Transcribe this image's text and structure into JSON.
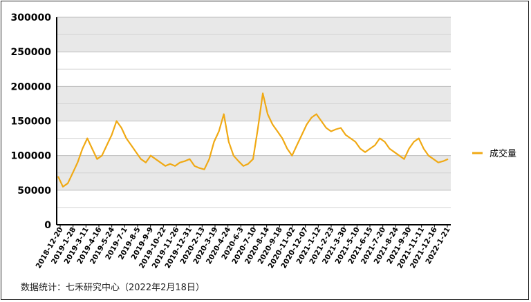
{
  "chart_data": {
    "type": "line",
    "title": "",
    "xlabel": "",
    "ylabel": "",
    "ylim": [
      0,
      300000
    ],
    "yticks": [
      0,
      50000,
      100000,
      150000,
      200000,
      250000,
      300000
    ],
    "grid": "horizontal bands",
    "legend_position": "right",
    "x_tick_labels": [
      "2018-12-20",
      "2019-1-28",
      "2019-3-11",
      "2019-4-16",
      "2019-5-24",
      "2019-7-1",
      "2019-8-5",
      "2019-9-9",
      "2019-10-22",
      "2019-11-26",
      "2019-12-31",
      "2020-2-13",
      "2020-3-19",
      "2020-4-24",
      "2020-6-3",
      "2020-7-10",
      "2020-8-14",
      "2020-9-18",
      "2020-11-02",
      "2020-12-07",
      "2021-1-12",
      "2021-2-23",
      "2021-3-30",
      "2021-5-10",
      "2021-6-15",
      "2021-7-20",
      "2021-8-24",
      "2021-9-30",
      "2021-11-11",
      "2021-12-16",
      "2022-1-21"
    ],
    "series": [
      {
        "name": "成交量",
        "color": "#F0A914",
        "values": [
          70000,
          55000,
          60000,
          75000,
          90000,
          110000,
          125000,
          110000,
          95000,
          100000,
          115000,
          130000,
          150000,
          140000,
          125000,
          115000,
          105000,
          95000,
          90000,
          100000,
          95000,
          90000,
          85000,
          88000,
          85000,
          90000,
          92000,
          95000,
          85000,
          82000,
          80000,
          95000,
          120000,
          135000,
          160000,
          120000,
          100000,
          92000,
          85000,
          88000,
          95000,
          140000,
          190000,
          160000,
          145000,
          135000,
          125000,
          110000,
          100000,
          115000,
          130000,
          145000,
          155000,
          160000,
          150000,
          140000,
          135000,
          138000,
          140000,
          130000,
          125000,
          120000,
          110000,
          105000,
          110000,
          115000,
          125000,
          120000,
          110000,
          105000,
          100000,
          95000,
          110000,
          120000,
          125000,
          110000,
          100000,
          95000,
          90000,
          92000,
          95000
        ]
      }
    ]
  },
  "source_note": "数据统计：七禾研究中心（2022年2月18日）"
}
